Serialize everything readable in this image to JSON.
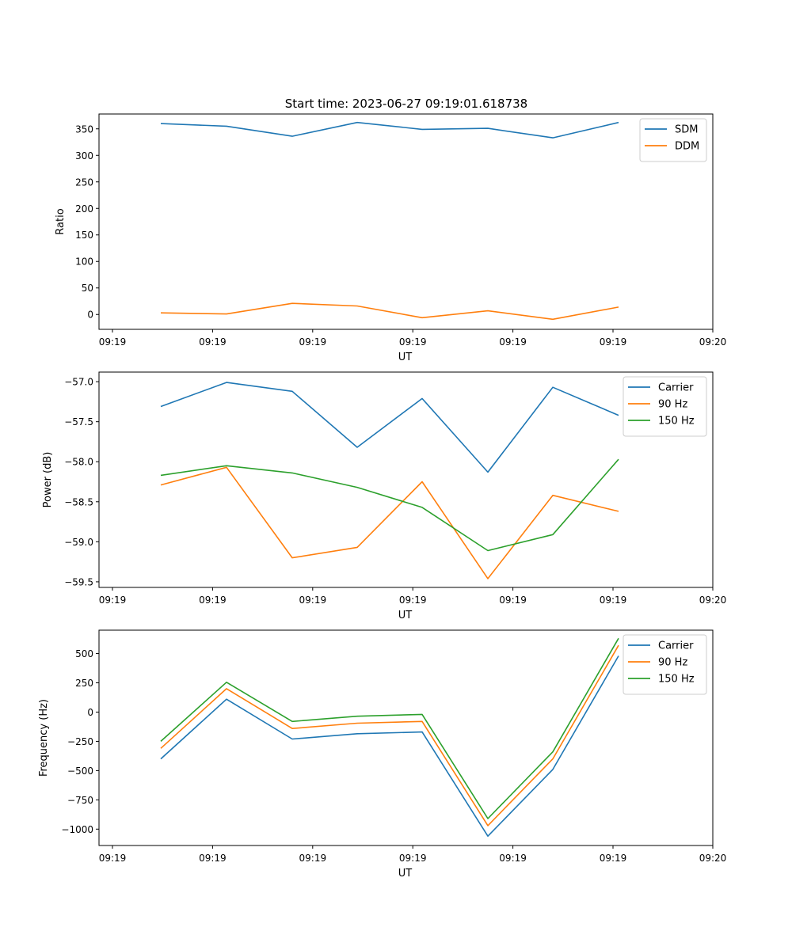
{
  "figure": {
    "title": "Start time: 2023-06-27 09:19:01.618738"
  },
  "chart_data": [
    {
      "type": "line",
      "xlabel": "UT",
      "ylabel": "Ratio",
      "x_tick_labels": [
        "09:19",
        "09:19",
        "09:19",
        "09:19",
        "09:19",
        "09:19",
        "09:20"
      ],
      "x_tick_count": 7,
      "ylim": [
        -28,
        378
      ],
      "y_ticks": [
        0,
        50,
        100,
        150,
        200,
        250,
        300,
        350
      ],
      "legend_position": "top-right",
      "series": [
        {
          "name": "SDM",
          "color": "#1f77b4",
          "values": [
            360,
            355,
            336,
            362,
            349,
            351,
            333,
            362
          ]
        },
        {
          "name": "DDM",
          "color": "#ff7f0e",
          "values": [
            3,
            1,
            21,
            16,
            -6,
            7,
            -9,
            14
          ]
        }
      ]
    },
    {
      "type": "line",
      "xlabel": "UT",
      "ylabel": "Power (dB)",
      "x_tick_labels": [
        "09:19",
        "09:19",
        "09:19",
        "09:19",
        "09:19",
        "09:19",
        "09:20"
      ],
      "x_tick_count": 7,
      "ylim": [
        -59.57,
        -56.88
      ],
      "y_ticks": [
        -59.5,
        -59.0,
        -58.5,
        -58.0,
        -57.5,
        -57.0
      ],
      "y_tick_labels": [
        "−59.5",
        "−59.0",
        "−58.5",
        "−58.0",
        "−57.5",
        "−57.0"
      ],
      "legend_position": "top-right",
      "series": [
        {
          "name": "Carrier",
          "color": "#1f77b4",
          "values": [
            -57.31,
            -57.01,
            -57.12,
            -57.82,
            -57.21,
            -58.13,
            -57.07,
            -57.42
          ]
        },
        {
          "name": "90 Hz",
          "color": "#ff7f0e",
          "values": [
            -58.29,
            -58.07,
            -59.2,
            -59.07,
            -58.25,
            -59.46,
            -58.42,
            -58.62
          ]
        },
        {
          "name": "150 Hz",
          "color": "#2ca02c",
          "values": [
            -58.17,
            -58.05,
            -58.14,
            -58.32,
            -58.57,
            -59.11,
            -58.91,
            -57.97
          ]
        }
      ]
    },
    {
      "type": "line",
      "xlabel": "UT",
      "ylabel": "Frequency (Hz)",
      "x_tick_labels": [
        "09:19",
        "09:19",
        "09:19",
        "09:19",
        "09:19",
        "09:19",
        "09:20"
      ],
      "x_tick_count": 7,
      "ylim": [
        -1140,
        700
      ],
      "y_ticks": [
        -1000,
        -750,
        -500,
        -250,
        0,
        250,
        500
      ],
      "y_tick_labels": [
        "−1000",
        "−750",
        "−500",
        "−250",
        "0",
        "250",
        "500"
      ],
      "legend_position": "top-right",
      "series": [
        {
          "name": "Carrier",
          "color": "#1f77b4",
          "values": [
            -400,
            110,
            -230,
            -185,
            -170,
            -1060,
            -490,
            480
          ]
        },
        {
          "name": "90 Hz",
          "color": "#ff7f0e",
          "values": [
            -310,
            200,
            -140,
            -95,
            -80,
            -970,
            -400,
            570
          ]
        },
        {
          "name": "150 Hz",
          "color": "#2ca02c",
          "values": [
            -250,
            255,
            -80,
            -35,
            -20,
            -910,
            -340,
            630
          ]
        }
      ]
    }
  ]
}
